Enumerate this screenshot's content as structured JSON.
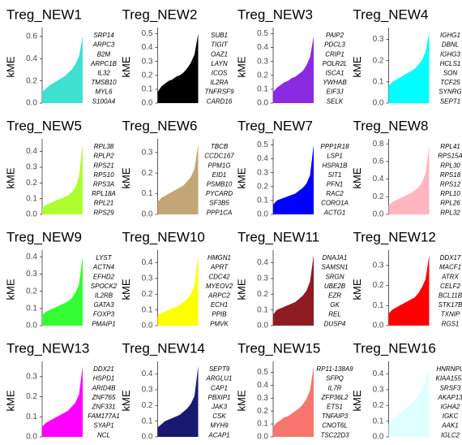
{
  "chart_data": [
    {
      "type": "area",
      "title": "Treg_NEW1",
      "y_label": "kME",
      "color": "#40E0D0",
      "ylim": [
        0,
        0.65
      ],
      "yticks": [
        {
          "value": 0,
          "label": "0.0"
        },
        0.2,
        0.4,
        0.6
      ],
      "values": [
        0.1,
        0.13,
        0.16,
        0.18,
        0.2,
        0.22,
        0.24,
        0.27,
        0.3,
        0.35,
        0.42,
        0.6
      ],
      "genes": [
        "SRP14",
        "ARPC3",
        "B2M",
        "ARPC1B",
        "IL32",
        "TMSB10",
        "MYL6",
        "S100A4"
      ]
    },
    {
      "type": "area",
      "title": "Treg_NEW2",
      "y_label": "kME",
      "color": "#000000",
      "ylim": [
        0,
        0.52
      ],
      "yticks": [
        {
          "value": 0,
          "label": "0.0"
        },
        0.1,
        0.2,
        0.3,
        0.4,
        0.5
      ],
      "values": [
        0.08,
        0.12,
        0.14,
        0.16,
        0.17,
        0.19,
        0.2,
        0.22,
        0.25,
        0.29,
        0.35,
        0.5
      ],
      "genes": [
        "SUB1",
        "TIGIT",
        "OAZ1",
        "LAYN",
        "ICOS",
        "IL2RA",
        "TNFRSF9",
        "CARD16"
      ]
    },
    {
      "type": "area",
      "title": "Treg_NEW3",
      "y_label": "kME",
      "color": "#8A2BE2",
      "ylim": [
        0,
        0.52
      ],
      "yticks": [
        {
          "value": 0,
          "label": "0.0"
        },
        0.1,
        0.2,
        0.3,
        0.4,
        0.5
      ],
      "values": [
        0.08,
        0.11,
        0.13,
        0.15,
        0.16,
        0.18,
        0.19,
        0.21,
        0.23,
        0.27,
        0.33,
        0.48
      ],
      "genes": [
        "PAIP2",
        "PDCL3",
        "CRIP1",
        "POLR2L",
        "ISCA1",
        "YWHAB",
        "EIF3J",
        "SELK"
      ]
    },
    {
      "type": "area",
      "title": "Treg_NEW4",
      "y_label": "kME",
      "color": "#00FFFF",
      "ylim": [
        0,
        0.34
      ],
      "yticks": [
        {
          "value": 0,
          "label": "0.0"
        },
        0.1,
        0.2,
        0.3
      ],
      "values": [
        0.08,
        0.1,
        0.11,
        0.12,
        0.13,
        0.14,
        0.15,
        0.16,
        0.18,
        0.2,
        0.24,
        0.33
      ],
      "genes": [
        "IGHG1",
        "DBNL",
        "IGHG3",
        "HCLS1",
        "SON",
        "TCF25",
        "SYNRG",
        "SEPT1"
      ]
    },
    {
      "type": "area",
      "title": "Treg_NEW5",
      "y_label": "kME",
      "color": "#ADFF2F",
      "ylim": [
        0,
        0.46
      ],
      "yticks": [
        {
          "value": 0,
          "label": "0.0"
        },
        0.1,
        0.2,
        0.3,
        0.4
      ],
      "values": [
        0.04,
        0.06,
        0.07,
        0.08,
        0.09,
        0.1,
        0.11,
        0.12,
        0.14,
        0.17,
        0.24,
        0.45
      ],
      "genes": [
        "RPL38",
        "RPLP2",
        "RPS21",
        "RPS10",
        "RPS3A",
        "RPL18A",
        "RPL21",
        "RPS29"
      ]
    },
    {
      "type": "area",
      "title": "Treg_NEW6",
      "y_label": "kME",
      "color": "#C4A577",
      "ylim": [
        0,
        0.35
      ],
      "yticks": [
        {
          "value": 0,
          "label": "0.0"
        },
        0.1,
        0.2,
        0.3
      ],
      "values": [
        0.06,
        0.08,
        0.09,
        0.1,
        0.11,
        0.12,
        0.13,
        0.14,
        0.16,
        0.18,
        0.22,
        0.34
      ],
      "genes": [
        "TBCB",
        "CCDC167",
        "PPM1G",
        "EID1",
        "PSMB10",
        "PYCARD",
        "SF3B5",
        "PPP1CA"
      ]
    },
    {
      "type": "area",
      "title": "Treg_NEW7",
      "y_label": "kME",
      "color": "#0000FF",
      "ylim": [
        0,
        0.52
      ],
      "yticks": [
        {
          "value": 0,
          "label": "0.0"
        },
        0.1,
        0.2,
        0.3,
        0.4,
        0.5
      ],
      "values": [
        0.07,
        0.1,
        0.11,
        0.12,
        0.13,
        0.14,
        0.15,
        0.17,
        0.19,
        0.22,
        0.28,
        0.5
      ],
      "genes": [
        "PPP1R18",
        "LSP1",
        "HSPA1B",
        "SIT1",
        "PFN1",
        "RAC2",
        "CORO1A",
        "ACTG1"
      ]
    },
    {
      "type": "area",
      "title": "Treg_NEW8",
      "y_label": "kME",
      "color": "#FFB6C1",
      "ylim": [
        0,
        0.82
      ],
      "yticks": [
        {
          "value": 0,
          "label": "0.0"
        },
        0.2,
        0.4,
        0.6,
        0.8
      ],
      "values": [
        0.1,
        0.14,
        0.16,
        0.18,
        0.2,
        0.22,
        0.24,
        0.27,
        0.3,
        0.36,
        0.46,
        0.78
      ],
      "genes": [
        "RPL41",
        "RPS15A",
        "RPL30",
        "RPS18",
        "RPS12",
        "RPL10",
        "RPL26",
        "RPL32"
      ]
    },
    {
      "type": "area",
      "title": "Treg_NEW9",
      "y_label": "kME",
      "color": "#33FF33",
      "ylim": [
        0,
        0.42
      ],
      "yticks": [
        {
          "value": 0,
          "label": "0.0"
        },
        0.1,
        0.2,
        0.3,
        0.4
      ],
      "values": [
        0.06,
        0.08,
        0.09,
        0.1,
        0.11,
        0.12,
        0.13,
        0.14,
        0.16,
        0.19,
        0.24,
        0.4
      ],
      "genes": [
        "LYST",
        "ACTN4",
        "EFHD2",
        "SPOCK2",
        "IL2RB",
        "GATA3",
        "FOXP3",
        "PMAIP1"
      ]
    },
    {
      "type": "area",
      "title": "Treg_NEW10",
      "y_label": "kME",
      "color": "#FFFF00",
      "ylim": [
        0,
        0.46
      ],
      "yticks": [
        {
          "value": 0,
          "label": "0.0"
        },
        0.1,
        0.2,
        0.3,
        0.4
      ],
      "values": [
        0.06,
        0.08,
        0.09,
        0.1,
        0.11,
        0.12,
        0.13,
        0.15,
        0.17,
        0.2,
        0.25,
        0.45
      ],
      "genes": [
        "HMGN1",
        "APRT",
        "CDC42",
        "MYEOV2",
        "ARPC2",
        "ECH1",
        "PPIB",
        "PMVK"
      ]
    },
    {
      "type": "area",
      "title": "Treg_NEW11",
      "y_label": "kME",
      "color": "#8E1C22",
      "ylim": [
        0,
        0.46
      ],
      "yticks": [
        {
          "value": 0,
          "label": "0.0"
        },
        0.1,
        0.2,
        0.3,
        0.4
      ],
      "values": [
        0.07,
        0.1,
        0.11,
        0.12,
        0.13,
        0.14,
        0.15,
        0.17,
        0.19,
        0.22,
        0.28,
        0.45
      ],
      "genes": [
        "DNAJA1",
        "SAMSN1",
        "SRGN",
        "UBE2B",
        "EZR",
        "GK",
        "REL",
        "DUSP4"
      ]
    },
    {
      "type": "area",
      "title": "Treg_NEW12",
      "y_label": "kME",
      "color": "#FF0000",
      "ylim": [
        0,
        0.36
      ],
      "yticks": [
        {
          "value": 0,
          "label": "0.0"
        },
        0.1,
        0.2,
        0.3
      ],
      "values": [
        0.06,
        0.08,
        0.09,
        0.1,
        0.11,
        0.12,
        0.13,
        0.14,
        0.16,
        0.19,
        0.23,
        0.35
      ],
      "genes": [
        "DDX17",
        "MACF1",
        "ATRX",
        "CELF2",
        "BCL11B",
        "STK17B",
        "TXNIP",
        "RGS1"
      ]
    },
    {
      "type": "area",
      "title": "Treg_NEW13",
      "y_label": "kME",
      "color": "#FF00FF",
      "ylim": [
        0,
        0.36
      ],
      "yticks": [
        {
          "value": 0,
          "label": "0.0"
        },
        0.1,
        0.2,
        0.3
      ],
      "values": [
        0.05,
        0.07,
        0.08,
        0.09,
        0.1,
        0.11,
        0.12,
        0.13,
        0.15,
        0.17,
        0.21,
        0.35
      ],
      "genes": [
        "DDX21",
        "HSPD1",
        "ARID4B",
        "ZNF765",
        "ZNF331",
        "FAM177A1",
        "SYAP1",
        "NCL"
      ]
    },
    {
      "type": "area",
      "title": "Treg_NEW14",
      "y_label": "kME",
      "color": "#191970",
      "ylim": [
        0,
        0.46
      ],
      "yticks": [
        {
          "value": 0,
          "label": "0.0"
        },
        0.1,
        0.2,
        0.3,
        0.4
      ],
      "values": [
        0.06,
        0.08,
        0.1,
        0.11,
        0.12,
        0.13,
        0.14,
        0.16,
        0.18,
        0.21,
        0.26,
        0.45
      ],
      "genes": [
        "SEPT9",
        "ARGLU1",
        "CAP1",
        "PBXIP1",
        "JAK3",
        "CSK",
        "MYH9",
        "ACAP1"
      ]
    },
    {
      "type": "area",
      "title": "Treg_NEW15",
      "y_label": "kME",
      "color": "#F8766D",
      "ylim": [
        0,
        0.56
      ],
      "yticks": [
        {
          "value": 0,
          "label": "0.0"
        },
        0.1,
        0.2,
        0.3,
        0.4,
        0.5
      ],
      "values": [
        0.08,
        0.11,
        0.13,
        0.15,
        0.16,
        0.18,
        0.2,
        0.22,
        0.25,
        0.29,
        0.36,
        0.55
      ],
      "genes": [
        "RP11-138A9",
        "SFPQ",
        "IL7R",
        "ZFP36L2",
        "ETS1",
        "TNFAIP3",
        "CNOT6L",
        "TSC22D3"
      ]
    },
    {
      "type": "area",
      "title": "Treg_NEW16",
      "y_label": "kME",
      "color": "#E0FFFF",
      "ylim": [
        0,
        0.46
      ],
      "yticks": [
        {
          "value": 0,
          "label": "0.0"
        },
        0.1,
        0.2,
        0.3,
        0.4
      ],
      "values": [
        0.08,
        0.11,
        0.13,
        0.15,
        0.17,
        0.19,
        0.21,
        0.23,
        0.26,
        0.3,
        0.35,
        0.45
      ],
      "genes": [
        "HNRNPU",
        "KIAA1551",
        "SRSF3",
        "AKAP13",
        "IGHA2",
        "IGKC",
        "AAK1",
        "IGLC2"
      ]
    }
  ]
}
